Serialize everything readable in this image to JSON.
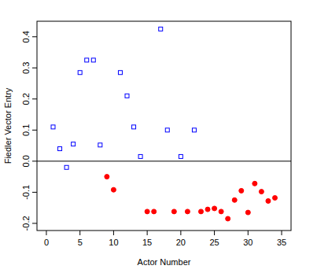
{
  "chart_data": {
    "type": "scatter",
    "x_label": "Actor Number",
    "y_label": "Fiedler Vector Entry",
    "xlim": [
      -1.4,
      36.4
    ],
    "ylim": [
      -0.223,
      0.45
    ],
    "xticks": [
      0,
      5,
      10,
      15,
      20,
      25,
      30,
      35
    ],
    "yticks": [
      -0.2,
      -0.1,
      {
        "value": 0,
        "label": "0.0"
      },
      0.1,
      0.2,
      0.3,
      0.4
    ],
    "hline": 0,
    "grid": false,
    "series": [
      {
        "color": "#0000ff",
        "marker": "square",
        "x": [
          1,
          2,
          3,
          4,
          5,
          6,
          7,
          8,
          11,
          12,
          13,
          14,
          17,
          18,
          20,
          22
        ],
        "values": [
          0.11,
          0.04,
          -0.02,
          0.055,
          0.285,
          0.325,
          0.325,
          0.052,
          0.285,
          0.21,
          0.11,
          0.015,
          0.425,
          0.1,
          0.015,
          0.1
        ]
      },
      {
        "color": "#ff0000",
        "marker": "circle",
        "x": [
          9,
          10,
          15,
          16,
          19,
          21,
          23,
          24,
          25,
          26,
          27,
          28,
          29,
          30,
          31,
          32,
          33,
          34
        ],
        "values": [
          -0.05,
          -0.092,
          -0.162,
          -0.162,
          -0.162,
          -0.162,
          -0.162,
          -0.155,
          -0.152,
          -0.162,
          -0.185,
          -0.125,
          -0.095,
          -0.165,
          -0.072,
          -0.098,
          -0.128,
          -0.118
        ]
      }
    ]
  }
}
